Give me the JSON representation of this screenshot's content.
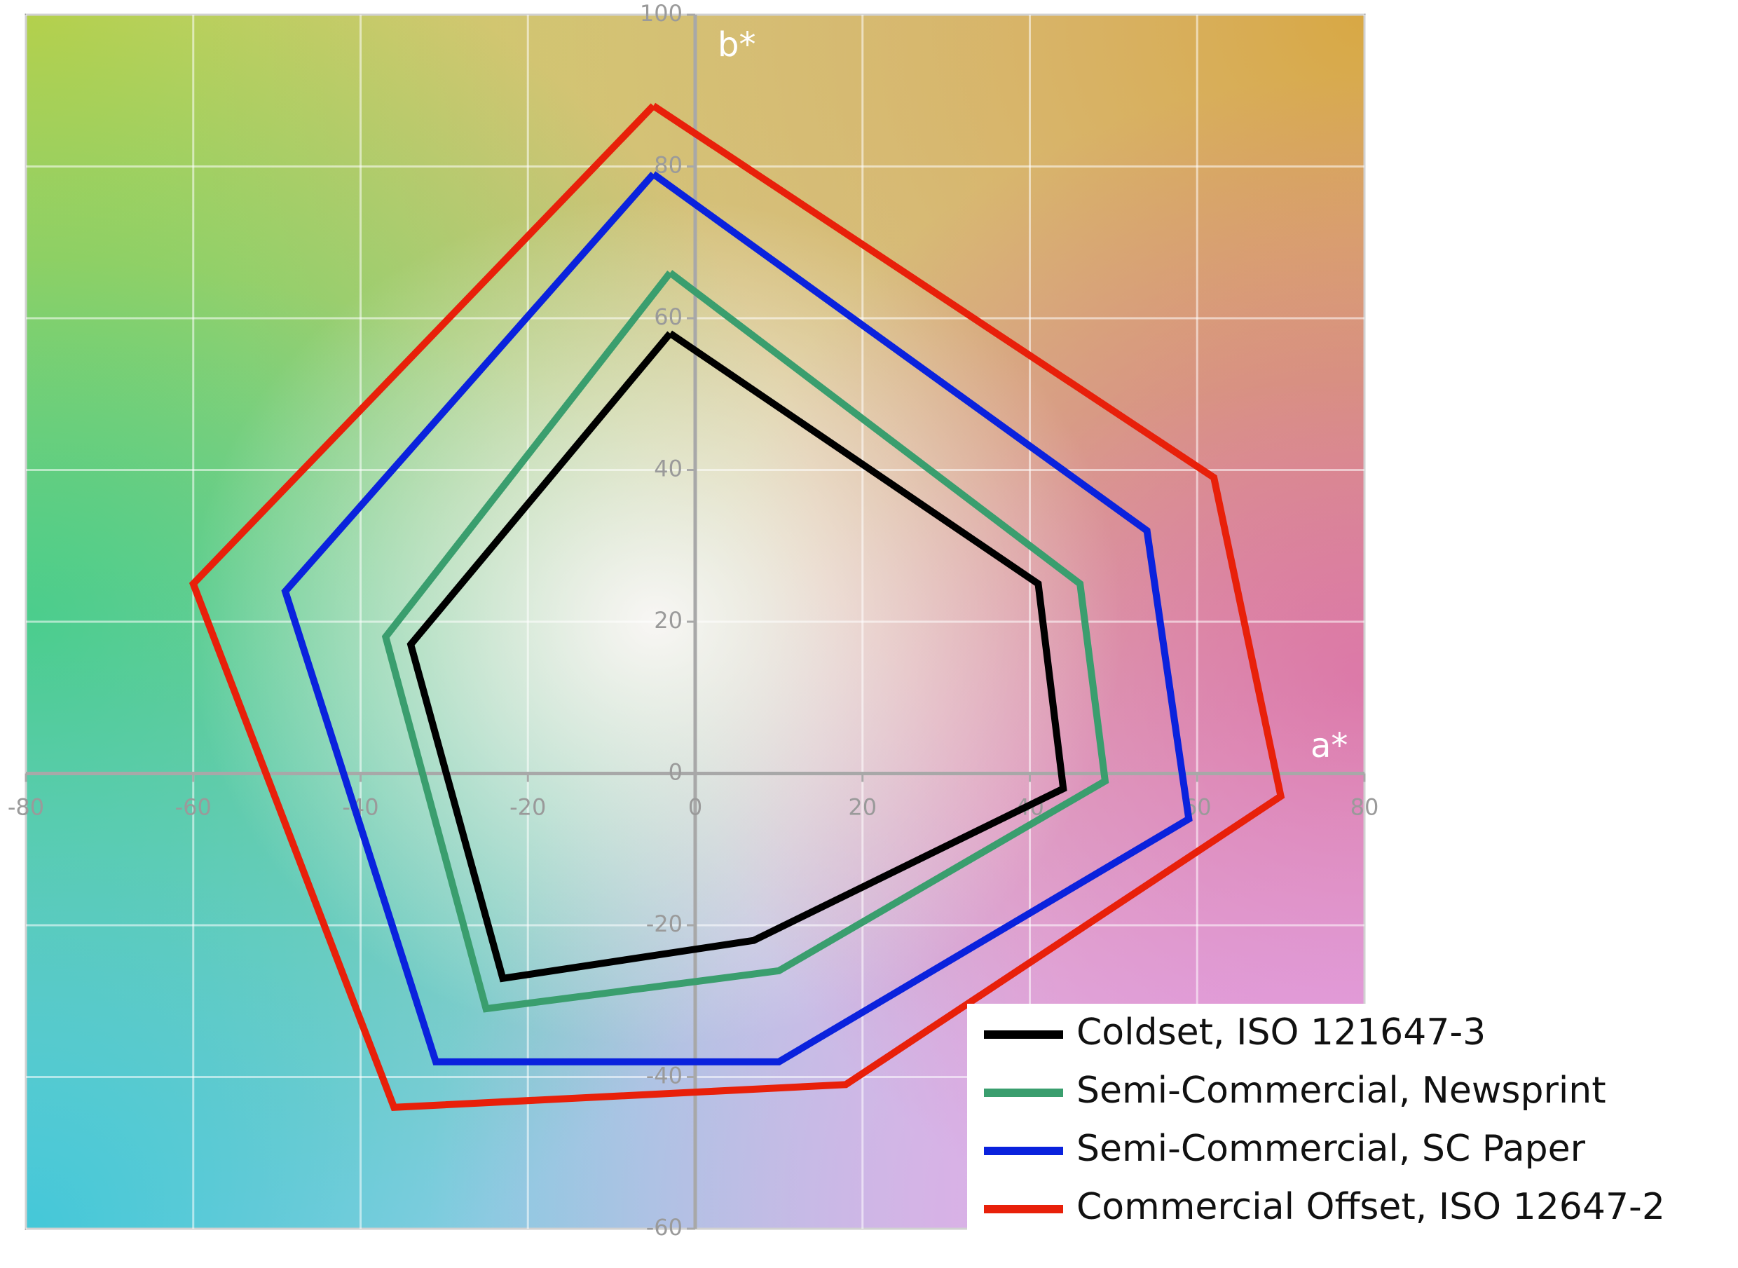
{
  "chart_data": {
    "type": "line",
    "x_label": "a*",
    "y_label": "b*",
    "xlim": [
      -80,
      80
    ],
    "xticks": [
      -80,
      -60,
      -40,
      -20,
      0,
      20,
      40,
      60,
      80
    ],
    "ylim": [
      -60,
      100
    ],
    "yticks": [
      -60,
      -40,
      -20,
      0,
      20,
      40,
      60,
      80,
      100
    ],
    "grid": true,
    "legend": "lower right",
    "series": [
      {
        "name": "Coldset, ISO 121647-3",
        "color": "#000000",
        "x": [
          -3,
          41,
          44,
          7,
          -23,
          -34,
          -3
        ],
        "values": [
          58,
          25,
          -2,
          -22,
          -27,
          17,
          58
        ]
      },
      {
        "name": "Semi-Commercial, Newsprint",
        "color": "#3a9e6e",
        "x": [
          -3,
          46,
          49,
          10,
          -25,
          -37,
          -3
        ],
        "values": [
          66,
          25,
          -1,
          -26,
          -31,
          18,
          66
        ]
      },
      {
        "name": "Semi-Commercial, SC Paper",
        "color": "#0a22dd",
        "x": [
          -5,
          54,
          59,
          10,
          -31,
          -49,
          -5
        ],
        "values": [
          79,
          32,
          -6,
          -38,
          -38,
          24,
          79
        ]
      },
      {
        "name": "Commercial Offset, ISO 12647-2",
        "color": "#e8200a",
        "x": [
          -5,
          62,
          70,
          18,
          -36,
          -60,
          -5
        ],
        "values": [
          88,
          39,
          -3,
          -41,
          -44,
          25,
          88
        ]
      }
    ]
  }
}
